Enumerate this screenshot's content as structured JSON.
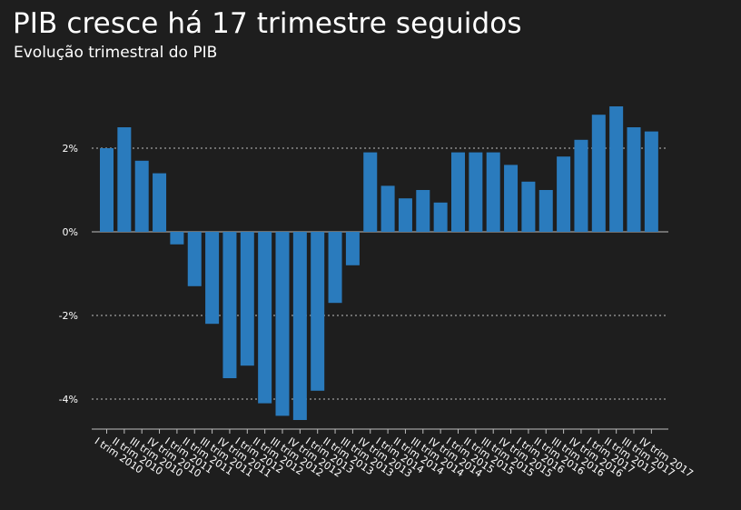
{
  "title": "PIB cresce há 17 trimestre seguidos",
  "subtitle": "Evolução trimestral do PIB",
  "colors": {
    "background": "#1e1e1e",
    "bar": "#2a7bbd",
    "text": "#ffffff",
    "grid": "#bdbdbd"
  },
  "chart_data": {
    "type": "bar",
    "title": "PIB cresce há 17 trimestre seguidos",
    "subtitle": "Evolução trimestral do PIB",
    "xlabel": "",
    "ylabel": "",
    "ylim": [
      -4.7,
      3.4
    ],
    "yticks": [
      2,
      0,
      -2,
      -4
    ],
    "ytick_labels": [
      "2%",
      "0%",
      "-2%",
      "-4%"
    ],
    "grid": true,
    "legend": "none",
    "categories": [
      "I trim 2010",
      "II trim 2010",
      "III trim 2010",
      "IV trim 2010",
      "I trim 2011",
      "II trim 2011",
      "III trim 2011",
      "IV trim 2011",
      "I trim 2012",
      "II trim 2012",
      "III trim 2012",
      "IV trim 2012",
      "I trim 2013",
      "II trim 2013",
      "III trim 2013",
      "IV trim 2013",
      "I trim 2014",
      "II trim 2014",
      "III trim 2014",
      "IV trim 2014",
      "I trim 2015",
      "II trim 2015",
      "III trim 2015",
      "IV trim 2015",
      "I trim 2016",
      "II trim 2016",
      "III trim 2016",
      "IV trim 2016",
      "I trim 2017",
      "II trim 2017",
      "III trim 2017",
      "IV trim 2017"
    ],
    "values": [
      2.0,
      2.5,
      1.7,
      1.4,
      -0.3,
      -1.3,
      -2.2,
      -3.5,
      -3.2,
      -4.1,
      -4.4,
      -4.5,
      -3.8,
      -1.7,
      -0.8,
      1.9,
      1.1,
      0.8,
      1.0,
      0.7,
      1.9,
      1.9,
      1.9,
      1.6,
      1.2,
      1.0,
      1.8,
      2.2,
      2.8,
      3.0,
      2.5,
      2.4
    ]
  }
}
